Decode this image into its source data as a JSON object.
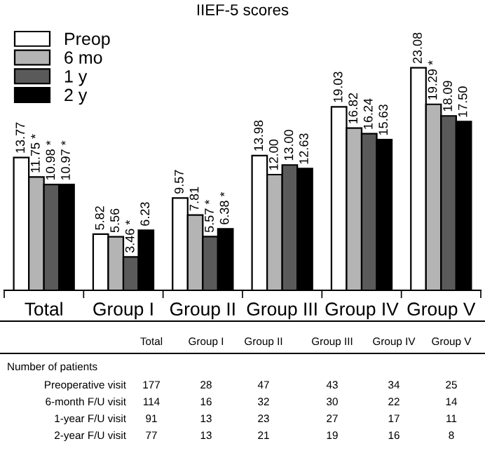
{
  "chart_data": {
    "type": "bar",
    "title": "IIEF-5 scores",
    "categories": [
      "Total",
      "Group I",
      "Group II",
      "Group III",
      "Group IV",
      "Group V"
    ],
    "series": [
      {
        "name": "Preop",
        "color": "#ffffff",
        "values": [
          13.77,
          5.82,
          9.57,
          13.98,
          19.03,
          23.08
        ],
        "value_labels": [
          "13.77",
          "5.82",
          "9.57",
          "13.98",
          "19.03",
          "23.08"
        ]
      },
      {
        "name": "6 mo",
        "color": "#b4b4b4",
        "values": [
          11.75,
          5.56,
          7.81,
          12.0,
          16.82,
          19.29
        ],
        "value_labels": [
          "11.75 *",
          "5.56",
          "7.81",
          "12.00",
          "16.82",
          "19.29 *"
        ]
      },
      {
        "name": "1 y",
        "color": "#5a5a5a",
        "values": [
          10.98,
          3.46,
          5.57,
          13.0,
          16.24,
          18.09
        ],
        "value_labels": [
          "10.98 *",
          "3.46 *",
          "5.57 *",
          "13.00",
          "16.24",
          "18.09"
        ]
      },
      {
        "name": "2 y",
        "color": "#000000",
        "values": [
          10.97,
          6.23,
          6.38,
          12.63,
          15.63,
          17.5
        ],
        "value_labels": [
          "10.97 *",
          "6.23",
          "6.38 *",
          "12.63",
          "15.63",
          "17.50"
        ]
      }
    ],
    "tick_labels": "x",
    "legend": "top left",
    "grid": false,
    "annotations": [
      "Total",
      "Group I",
      "Group II",
      "Group III",
      "Group IV",
      "Group V",
      "Number of patients",
      "Preoperative visit",
      "177",
      "28",
      "47",
      "43",
      "34",
      "25",
      "6-month F/U visit",
      "114",
      "16",
      "32",
      "30",
      "22",
      "14",
      "1-year F/U visit",
      "91",
      "13",
      "23",
      "27",
      "17",
      "11",
      "2-year F/U visit",
      "77",
      "13",
      "21",
      "19",
      "16",
      "8"
    ]
  }
}
